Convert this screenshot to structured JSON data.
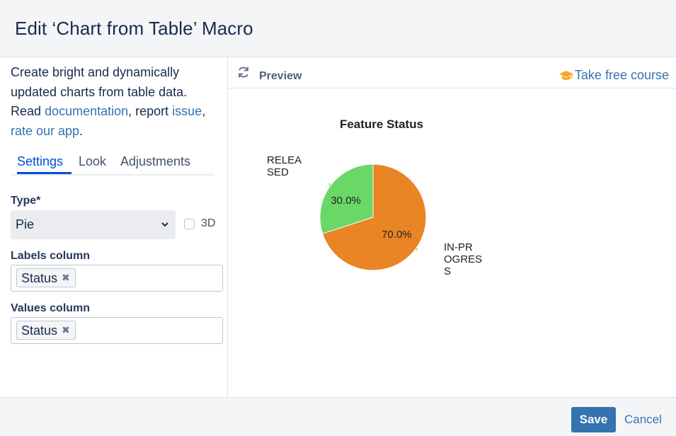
{
  "dialog": {
    "title": "Edit ‘Chart from Table’ Macro"
  },
  "intro": {
    "line1": "Create bright and dynamically updated charts from table data.",
    "read": "Read ",
    "documentation_link": "documentation",
    "report": ", report ",
    "issue_link": "issue",
    "comma": ",",
    "rate_link": "rate our app",
    "period": "."
  },
  "tabs": [
    {
      "label": "Settings",
      "active": true
    },
    {
      "label": "Look",
      "active": false
    },
    {
      "label": "Adjustments",
      "active": false
    }
  ],
  "settings": {
    "type_label": "Type*",
    "type_value": "Pie",
    "threed_label": "3D",
    "threed_checked": false,
    "labels_column_label": "Labels column",
    "labels_column_tag": "Status",
    "values_column_label": "Values column",
    "values_column_tag": "Status",
    "tag_remove_glyph": "✖"
  },
  "preview": {
    "label": "Preview",
    "course_link": "Take free course",
    "refresh_icon": "refresh-icon",
    "course_icon": "graduation-cap-icon"
  },
  "chart_data": {
    "type": "pie",
    "title": "Feature Status",
    "slices": [
      {
        "label": "RELEASED",
        "value": 30.0,
        "display": "30.0%",
        "color": "#6ad866",
        "label_lines": [
          "RELEA",
          "SED"
        ]
      },
      {
        "label": "IN-PROGRESS",
        "value": 70.0,
        "display": "70.0%",
        "color": "#e98524",
        "label_lines": [
          "IN-PR",
          "OGRES",
          "S"
        ]
      }
    ]
  },
  "footer": {
    "save_label": "Save",
    "cancel_label": "Cancel"
  },
  "colors": {
    "accent": "#3572b0",
    "tab_active": "#0052cc"
  }
}
